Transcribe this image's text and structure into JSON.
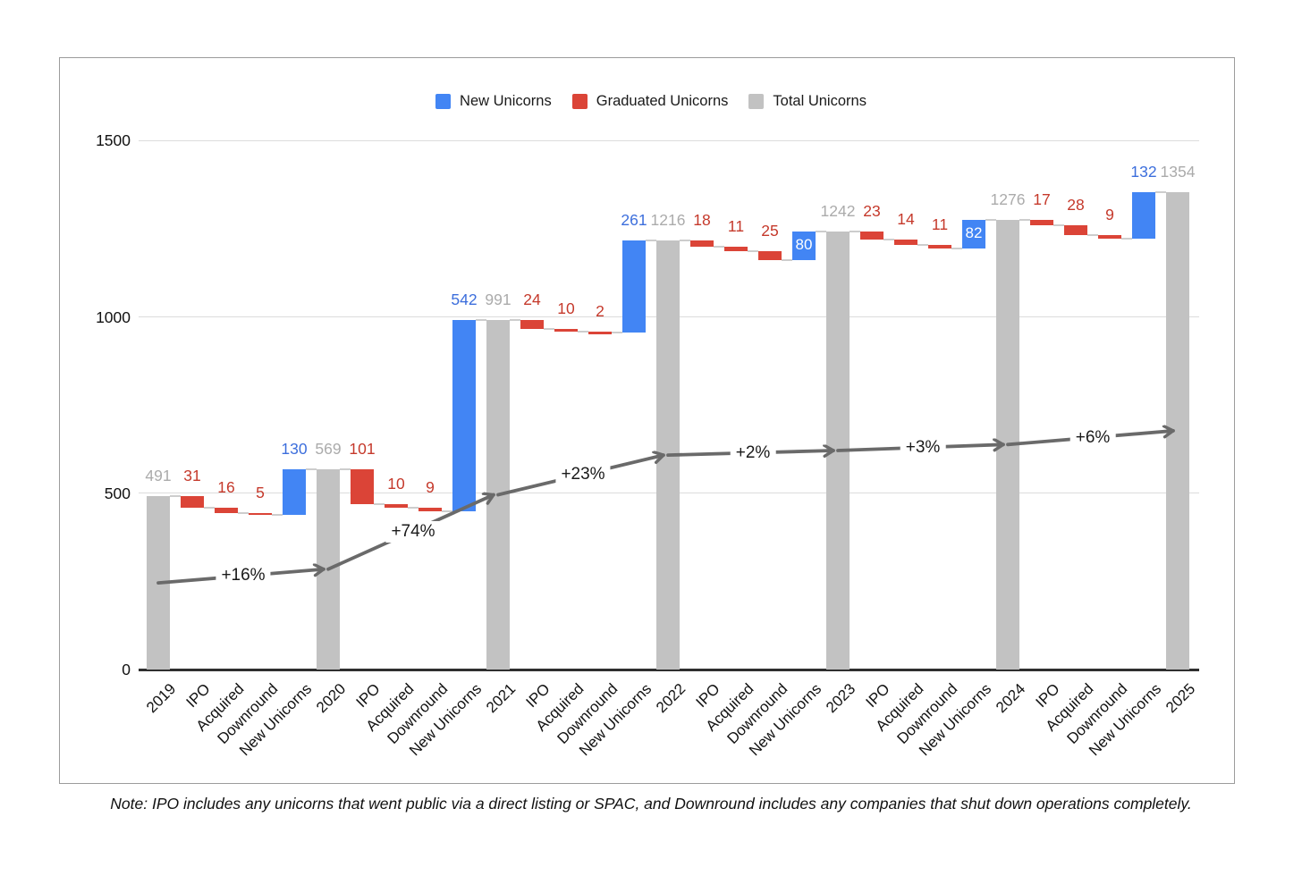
{
  "legend": {
    "items": [
      {
        "id": "new-unicorns",
        "label": "New Unicorns",
        "color": "#4285F4"
      },
      {
        "id": "graduated-unicorns",
        "label": "Graduated Unicorns",
        "color": "#DB4437"
      },
      {
        "id": "total-unicorns",
        "label": "Total Unicorns",
        "color": "#C2C2C2"
      }
    ]
  },
  "note": "Note: IPO includes any unicorns that went public via a direct listing or SPAC, and Downround includes any companies that shut down operations completely.",
  "chart_data": {
    "type": "bar",
    "subtype": "waterfall",
    "title": "",
    "xlabel": "",
    "ylabel": "",
    "ylim": [
      0,
      1500
    ],
    "yticks": [
      0,
      500,
      1000,
      1500
    ],
    "grid": true,
    "legend_position": "top",
    "colors": {
      "new_bar": "#4285F4",
      "graduated_bar": "#DB4437",
      "total_bar": "#C2C2C2",
      "new_label": "#3C6EDC",
      "graduated_label": "#C5392B",
      "total_label": "#ABABAB",
      "inside_label": "#FFFFFF",
      "arrow": "#6A6A6A",
      "gridline": "#DCDCDC",
      "baseline": "#2F2F2F",
      "connector": "#CDCDCD"
    },
    "categories": [
      {
        "label": "2019",
        "kind": "total",
        "value": 491
      },
      {
        "label": "IPO",
        "kind": "decrease",
        "value": 31
      },
      {
        "label": "Acquired",
        "kind": "decrease",
        "value": 16
      },
      {
        "label": "Downround",
        "kind": "decrease",
        "value": 5
      },
      {
        "label": "New Unicorns",
        "kind": "increase",
        "value": 130
      },
      {
        "label": "2020",
        "kind": "total",
        "value": 569
      },
      {
        "label": "IPO",
        "kind": "decrease",
        "value": 101
      },
      {
        "label": "Acquired",
        "kind": "decrease",
        "value": 10
      },
      {
        "label": "Downround",
        "kind": "decrease",
        "value": 9
      },
      {
        "label": "New Unicorns",
        "kind": "increase",
        "value": 542
      },
      {
        "label": "2021",
        "kind": "total",
        "value": 991
      },
      {
        "label": "IPO",
        "kind": "decrease",
        "value": 24
      },
      {
        "label": "Acquired",
        "kind": "decrease",
        "value": 10
      },
      {
        "label": "Downround",
        "kind": "decrease",
        "value": 2
      },
      {
        "label": "New Unicorns",
        "kind": "increase",
        "value": 261
      },
      {
        "label": "2022",
        "kind": "total",
        "value": 1216
      },
      {
        "label": "IPO",
        "kind": "decrease",
        "value": 18
      },
      {
        "label": "Acquired",
        "kind": "decrease",
        "value": 11
      },
      {
        "label": "Downround",
        "kind": "decrease",
        "value": 25
      },
      {
        "label": "New Unicorns",
        "kind": "increase",
        "value": 80,
        "label_inside": true
      },
      {
        "label": "2023",
        "kind": "total",
        "value": 1242
      },
      {
        "label": "IPO",
        "kind": "decrease",
        "value": 23
      },
      {
        "label": "Acquired",
        "kind": "decrease",
        "value": 14
      },
      {
        "label": "Downround",
        "kind": "decrease",
        "value": 11
      },
      {
        "label": "New Unicorns",
        "kind": "increase",
        "value": 82,
        "label_inside": true
      },
      {
        "label": "2024",
        "kind": "total",
        "value": 1276
      },
      {
        "label": "IPO",
        "kind": "decrease",
        "value": 17
      },
      {
        "label": "Acquired",
        "kind": "decrease",
        "value": 28
      },
      {
        "label": "Downround",
        "kind": "decrease",
        "value": 9
      },
      {
        "label": "New Unicorns",
        "kind": "increase",
        "value": 132
      },
      {
        "label": "2025",
        "kind": "total",
        "value": 1354
      }
    ],
    "growth_arrows": [
      {
        "from": 0,
        "to": 5,
        "label": "+16%"
      },
      {
        "from": 5,
        "to": 10,
        "label": "+74%"
      },
      {
        "from": 10,
        "to": 15,
        "label": "+23%"
      },
      {
        "from": 15,
        "to": 20,
        "label": "+2%"
      },
      {
        "from": 20,
        "to": 25,
        "label": "+3%"
      },
      {
        "from": 25,
        "to": 30,
        "label": "+6%"
      }
    ]
  }
}
